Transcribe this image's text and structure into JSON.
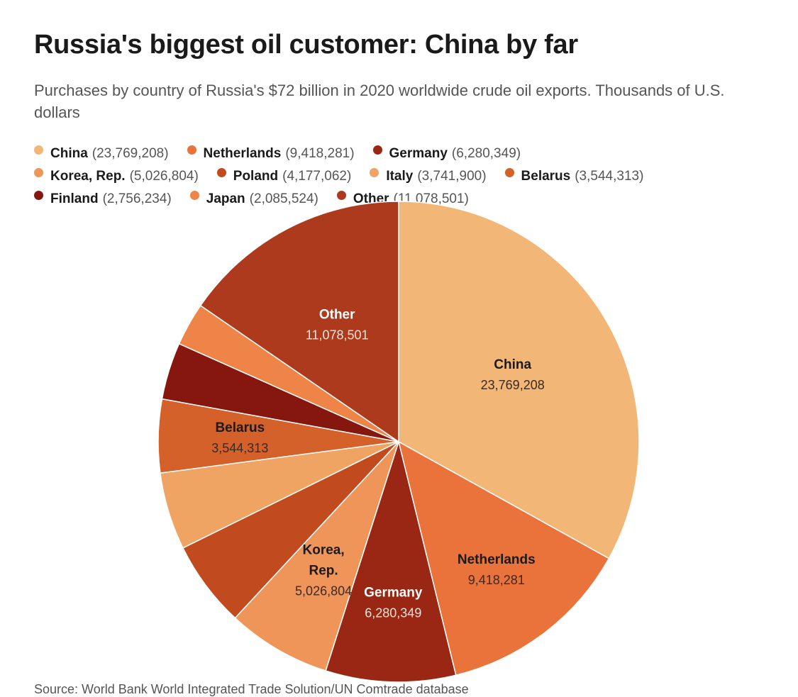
{
  "header": {
    "title": "Russia's biggest oil customer: China by far",
    "subtitle": "Purchases by country of Russia's $72 billion in 2020 worldwide crude oil exports. Thousands of U.S. dollars"
  },
  "footer": {
    "source": "Source: World Bank World Integrated Trade Solution/UN Comtrade database"
  },
  "chart_data": {
    "type": "pie",
    "title": "Russia's biggest oil customer: China by far",
    "subtitle": "Purchases by country of Russia's $72 billion in 2020 worldwide crude oil exports. Thousands of U.S. dollars",
    "legend_placement": "top",
    "start_angle": "12 o'clock, clockwise",
    "slices": [
      {
        "name": "China",
        "value": 23769208,
        "value_label": "23,769,208",
        "color": "#F2B676",
        "text_color": "#1a1a1a",
        "show_label": true
      },
      {
        "name": "Netherlands",
        "value": 9418281,
        "value_label": "9,418,281",
        "color": "#E9733A",
        "text_color": "#1a1a1a",
        "show_label": true
      },
      {
        "name": "Germany",
        "value": 6280349,
        "value_label": "6,280,349",
        "color": "#9A2714",
        "text_color": "#ffffff",
        "show_label": true
      },
      {
        "name": "Korea, Rep.",
        "value": 5026804,
        "value_label": "5,026,804",
        "color": "#EF955A",
        "text_color": "#1a1a1a",
        "show_label": true,
        "label_lines": [
          "Korea,",
          "Rep."
        ]
      },
      {
        "name": "Poland",
        "value": 4177062,
        "value_label": "4,177,062",
        "color": "#C24A1F",
        "show_label": false
      },
      {
        "name": "Italy",
        "value": 3741900,
        "value_label": "3,741,900",
        "color": "#F0A464",
        "show_label": false
      },
      {
        "name": "Belarus",
        "value": 3544313,
        "value_label": "3,544,313",
        "color": "#D4602A",
        "text_color": "#1a1a1a",
        "show_label": true
      },
      {
        "name": "Finland",
        "value": 2756234,
        "value_label": "2,756,234",
        "color": "#86170F",
        "show_label": false
      },
      {
        "name": "Japan",
        "value": 2085524,
        "value_label": "2,085,524",
        "color": "#EE8448",
        "show_label": false
      },
      {
        "name": "Other",
        "value": 11078501,
        "value_label": "11,078,501",
        "color": "#AD3A1C",
        "text_color": "#ffffff",
        "show_label": true
      }
    ]
  }
}
